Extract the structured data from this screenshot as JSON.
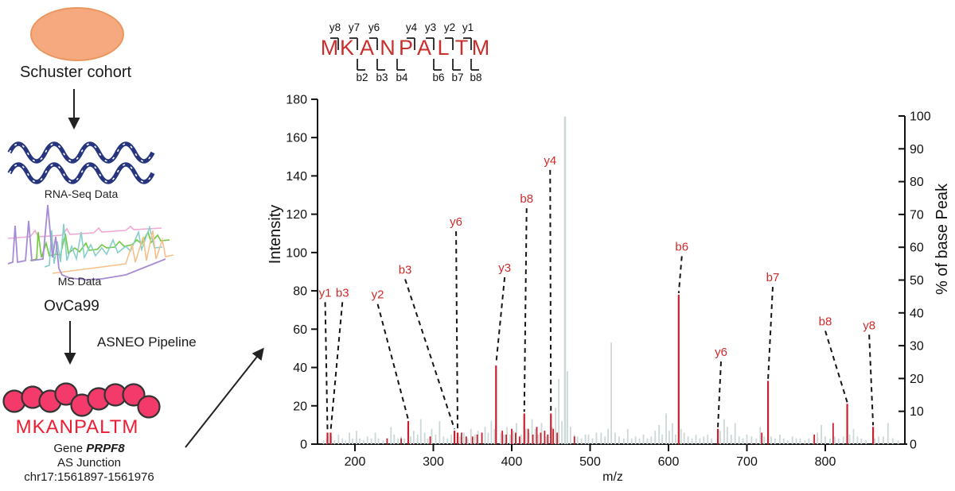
{
  "workflow": {
    "cohort_label": "Schuster cohort",
    "rna_seq_label": "RNA-Seq Data",
    "ms_data_label": "MS Data",
    "sample_label": "OvCa99",
    "pipeline_label": "ASNEO Pipeline",
    "peptide": "MKANPALTM",
    "gene_prefix": "Gene",
    "gene_name": "PRPF8",
    "as_junction_label": "AS Junction",
    "junction_coords": "chr17:1561897-1561976",
    "cohort_fill": "#f6a97e",
    "bead_fill": "#f43a6a"
  },
  "peptide_diagram": {
    "residues": [
      "M",
      "K",
      "A",
      "N",
      "P",
      "A",
      "L",
      "T",
      "M"
    ],
    "top_ions": [
      {
        "label": "y8",
        "boundary": 0
      },
      {
        "label": "y7",
        "boundary": 1
      },
      {
        "label": "y6",
        "boundary": 2
      },
      {
        "label": "y4",
        "boundary": 4
      },
      {
        "label": "y3",
        "boundary": 5
      },
      {
        "label": "y2",
        "boundary": 6
      },
      {
        "label": "y1",
        "boundary": 7
      }
    ],
    "bottom_ions": [
      {
        "label": "b2",
        "boundary": 1
      },
      {
        "label": "b3",
        "boundary": 2
      },
      {
        "label": "b4",
        "boundary": 3
      },
      {
        "label": "b6",
        "boundary": 5
      },
      {
        "label": "b7",
        "boundary": 6
      },
      {
        "label": "b8",
        "boundary": 7
      }
    ],
    "residue_color": "#c8302e",
    "ion_label_color": "#111111"
  },
  "chart_data": {
    "type": "bar",
    "subtype": "ms2-stick-spectrum",
    "title": "",
    "xlabel": "m/z",
    "ylabel_left": "Intensity",
    "ylabel_right": "% of base Peak",
    "x_ticks": [
      200,
      300,
      400,
      500,
      600,
      700,
      800
    ],
    "xlim": [
      155,
      905
    ],
    "left_ticks": [
      0,
      20,
      40,
      60,
      80,
      100,
      120,
      140,
      160,
      180
    ],
    "ylim_left": [
      0,
      180
    ],
    "right_ticks": [
      0,
      10,
      20,
      30,
      40,
      50,
      60,
      70,
      80,
      90,
      100
    ],
    "ylim_right": [
      0,
      100
    ],
    "grid": false,
    "base_peak": {
      "mz": 468,
      "intensity": 171,
      "pct_of_base": 100
    },
    "annotated_peaks": [
      {
        "label": "y1",
        "mz": 165,
        "intensity": 6,
        "label_mz": 162,
        "label_intensity": 77
      },
      {
        "label": "b3",
        "mz": 169,
        "intensity": 6,
        "label_mz": 184,
        "label_intensity": 77
      },
      {
        "label": "y2",
        "mz": 268,
        "intensity": 12,
        "label_mz": 229,
        "label_intensity": 76
      },
      {
        "label": "b3",
        "mz": 327,
        "intensity": 7,
        "label_mz": 264,
        "label_intensity": 89
      },
      {
        "label": "y6",
        "mz": 331,
        "intensity": 6,
        "label_mz": 329,
        "label_intensity": 114
      },
      {
        "label": "y3",
        "mz": 380,
        "intensity": 41,
        "label_mz": 391,
        "label_intensity": 90
      },
      {
        "label": "b8",
        "mz": 416,
        "intensity": 16,
        "label_mz": 419,
        "label_intensity": 126
      },
      {
        "label": "y4",
        "mz": 450,
        "intensity": 16,
        "label_mz": 449,
        "label_intensity": 146
      },
      {
        "label": "b6",
        "mz": 613,
        "intensity": 78,
        "label_mz": 617,
        "label_intensity": 101
      },
      {
        "label": "y6",
        "mz": 663,
        "intensity": 8,
        "label_mz": 667,
        "label_intensity": 46
      },
      {
        "label": "b7",
        "mz": 727,
        "intensity": 33,
        "label_mz": 733,
        "label_intensity": 85
      },
      {
        "label": "b8",
        "mz": 828,
        "intensity": 21,
        "label_mz": 800,
        "label_intensity": 62
      },
      {
        "label": "y8",
        "mz": 861,
        "intensity": 9,
        "label_mz": 856,
        "label_intensity": 60
      }
    ],
    "matched_unlabeled_peaks": [
      [
        241,
        3
      ],
      [
        259,
        3
      ],
      [
        296,
        4
      ],
      [
        336,
        6
      ],
      [
        342,
        4
      ],
      [
        350,
        4
      ],
      [
        356,
        5
      ],
      [
        362,
        6
      ],
      [
        388,
        7
      ],
      [
        393,
        5
      ],
      [
        400,
        8
      ],
      [
        405,
        6
      ],
      [
        410,
        4
      ],
      [
        421,
        8
      ],
      [
        427,
        5
      ],
      [
        432,
        9
      ],
      [
        437,
        6
      ],
      [
        442,
        7
      ],
      [
        446,
        5
      ],
      [
        453,
        8
      ],
      [
        458,
        6
      ],
      [
        480,
        4
      ],
      [
        719,
        6
      ],
      [
        786,
        5
      ],
      [
        810,
        11
      ]
    ],
    "background_peaks": [
      [
        160,
        2
      ],
      [
        164,
        3
      ],
      [
        170,
        4
      ],
      [
        174,
        2
      ],
      [
        179,
        5
      ],
      [
        184,
        3
      ],
      [
        188,
        2
      ],
      [
        193,
        6
      ],
      [
        197,
        3
      ],
      [
        202,
        7
      ],
      [
        206,
        3
      ],
      [
        211,
        2
      ],
      [
        216,
        4
      ],
      [
        221,
        3
      ],
      [
        226,
        6
      ],
      [
        230,
        3
      ],
      [
        236,
        2
      ],
      [
        241,
        3
      ],
      [
        246,
        9
      ],
      [
        250,
        5
      ],
      [
        255,
        3
      ],
      [
        259,
        4
      ],
      [
        263,
        3
      ],
      [
        271,
        4
      ],
      [
        275,
        7
      ],
      [
        280,
        5
      ],
      [
        284,
        13
      ],
      [
        289,
        6
      ],
      [
        293,
        3
      ],
      [
        298,
        8
      ],
      [
        303,
        5
      ],
      [
        308,
        12
      ],
      [
        313,
        4
      ],
      [
        318,
        3
      ],
      [
        323,
        5
      ],
      [
        334,
        4
      ],
      [
        339,
        6
      ],
      [
        344,
        3
      ],
      [
        348,
        8
      ],
      [
        353,
        5
      ],
      [
        357,
        7
      ],
      [
        366,
        9
      ],
      [
        370,
        6
      ],
      [
        374,
        12
      ],
      [
        378,
        8
      ],
      [
        386,
        6
      ],
      [
        390,
        5
      ],
      [
        394,
        9
      ],
      [
        398,
        5
      ],
      [
        402,
        7
      ],
      [
        406,
        11
      ],
      [
        412,
        5
      ],
      [
        418,
        8
      ],
      [
        422,
        6
      ],
      [
        426,
        13
      ],
      [
        430,
        8
      ],
      [
        434,
        5
      ],
      [
        438,
        11
      ],
      [
        444,
        4
      ],
      [
        452,
        9
      ],
      [
        456,
        19
      ],
      [
        460,
        34
      ],
      [
        464,
        12
      ],
      [
        471,
        38
      ],
      [
        475,
        9
      ],
      [
        480,
        5
      ],
      [
        484,
        4
      ],
      [
        489,
        3
      ],
      [
        494,
        5
      ],
      [
        498,
        5
      ],
      [
        503,
        3
      ],
      [
        508,
        6
      ],
      [
        514,
        6
      ],
      [
        519,
        4
      ],
      [
        523,
        8
      ],
      [
        527,
        53
      ],
      [
        532,
        6
      ],
      [
        537,
        4
      ],
      [
        543,
        3
      ],
      [
        548,
        8
      ],
      [
        553,
        3
      ],
      [
        558,
        4
      ],
      [
        563,
        3
      ],
      [
        568,
        5
      ],
      [
        573,
        3
      ],
      [
        578,
        4
      ],
      [
        583,
        7
      ],
      [
        588,
        10
      ],
      [
        592,
        5
      ],
      [
        597,
        16
      ],
      [
        601,
        7
      ],
      [
        605,
        11
      ],
      [
        609,
        5
      ],
      [
        616,
        8
      ],
      [
        620,
        6
      ],
      [
        625,
        4
      ],
      [
        630,
        3
      ],
      [
        635,
        5
      ],
      [
        640,
        3
      ],
      [
        645,
        4
      ],
      [
        650,
        5
      ],
      [
        655,
        3
      ],
      [
        666,
        7
      ],
      [
        671,
        13
      ],
      [
        675,
        9
      ],
      [
        680,
        5
      ],
      [
        685,
        11
      ],
      [
        690,
        4
      ],
      [
        695,
        3
      ],
      [
        700,
        5
      ],
      [
        706,
        4
      ],
      [
        712,
        3
      ],
      [
        717,
        9
      ],
      [
        722,
        4
      ],
      [
        731,
        4
      ],
      [
        736,
        3
      ],
      [
        742,
        5
      ],
      [
        747,
        3
      ],
      [
        752,
        2
      ],
      [
        758,
        4
      ],
      [
        763,
        3
      ],
      [
        768,
        3
      ],
      [
        774,
        2
      ],
      [
        779,
        3
      ],
      [
        785,
        4
      ],
      [
        790,
        6
      ],
      [
        795,
        10
      ],
      [
        800,
        4
      ],
      [
        806,
        3
      ],
      [
        812,
        4
      ],
      [
        817,
        3
      ],
      [
        823,
        4
      ],
      [
        831,
        5
      ],
      [
        836,
        8
      ],
      [
        841,
        4
      ],
      [
        846,
        3
      ],
      [
        852,
        2
      ],
      [
        863,
        3
      ],
      [
        868,
        4
      ],
      [
        874,
        4
      ],
      [
        880,
        11
      ],
      [
        886,
        3
      ],
      [
        893,
        2
      ]
    ],
    "colors": {
      "annotated": "#c8202f",
      "background": "#ccd8d8",
      "label_text": "#cf2a2a",
      "dashed_line": "#151515",
      "axis": "#111111"
    }
  }
}
